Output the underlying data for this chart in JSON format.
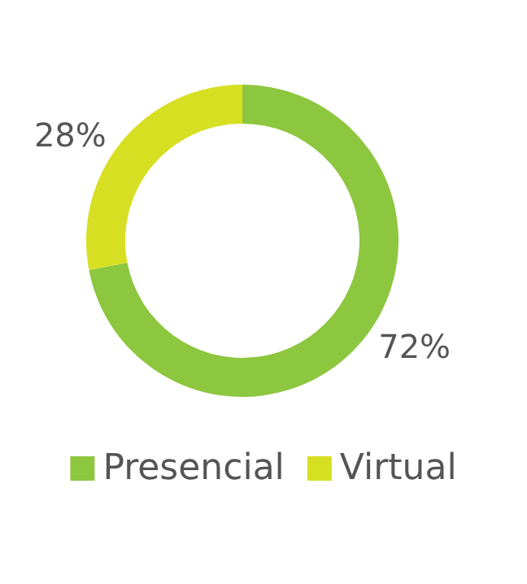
{
  "chart_data": {
    "type": "donut",
    "categories": [
      "Presencial",
      "Virtual"
    ],
    "values": [
      72,
      28
    ],
    "value_labels": [
      "72%",
      "28%"
    ],
    "colors": [
      "#8dc63f",
      "#d7df23"
    ],
    "legend": "bottom"
  }
}
